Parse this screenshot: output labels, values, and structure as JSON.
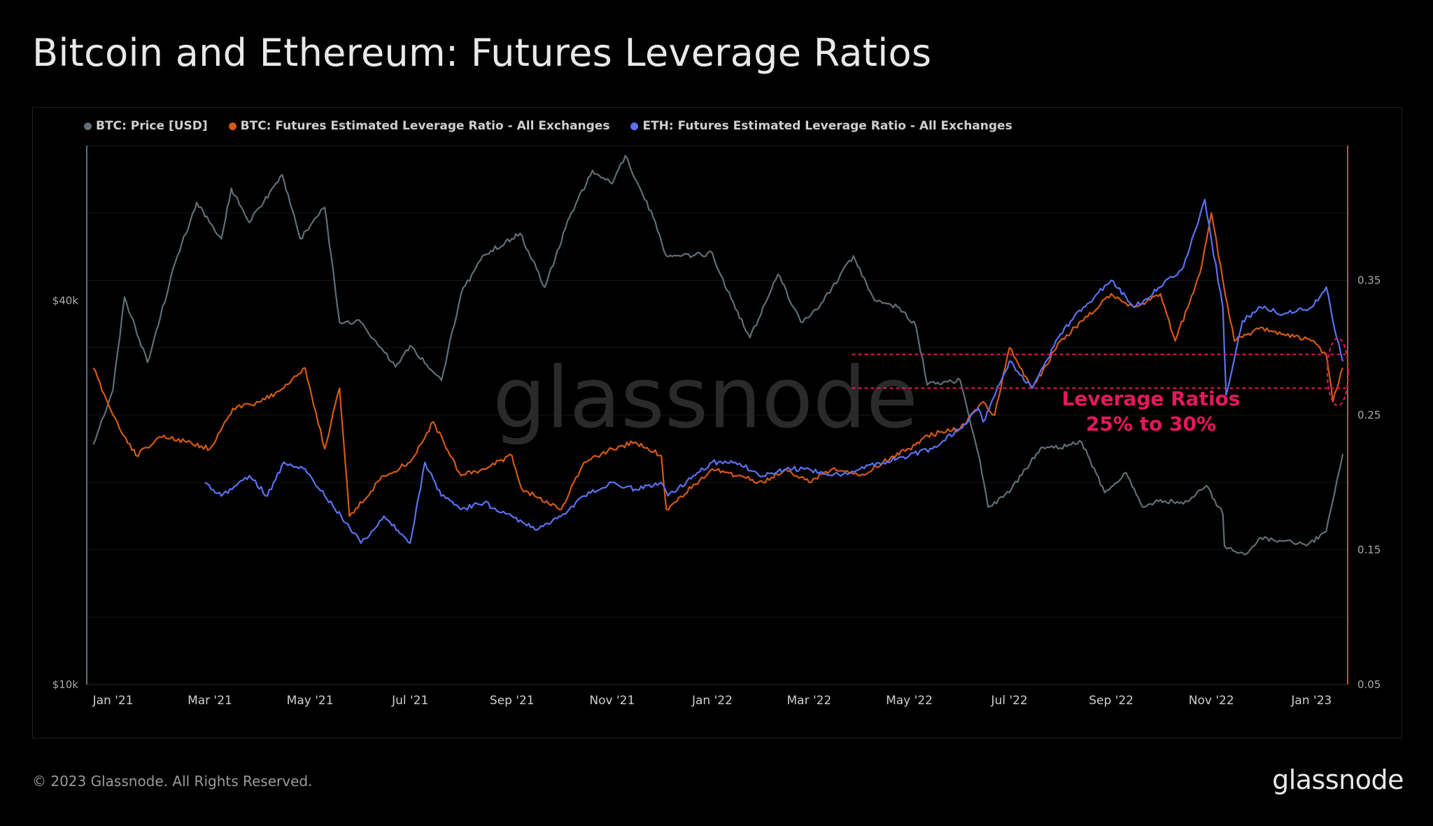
{
  "title": "Bitcoin and Ethereum: Futures Leverage Ratios",
  "footer": {
    "copyright": "© 2023 Glassnode. All Rights Reserved.",
    "logo": "glassnode"
  },
  "watermark": "glassnode",
  "colors": {
    "btc_price": "#5f6f75",
    "btc_lev": "#d45a14",
    "eth_lev": "#5b72f2",
    "highlight": "#e8175d",
    "right_axis": "#c8561a",
    "left_axis": "#5f6f75"
  },
  "chart_data": {
    "type": "line",
    "legend_position": "top-left",
    "grid": true,
    "x_range": [
      "2020-12-16",
      "2023-01-23"
    ],
    "x_ticks": [
      "Jan '21",
      "Mar '21",
      "May '21",
      "Jul '21",
      "Sep '21",
      "Nov '21",
      "Jan '22",
      "Mar '22",
      "May '22",
      "Jul '22",
      "Sep '22",
      "Nov '22",
      "Jan '23"
    ],
    "x_tick_dates": [
      "2021-01-01",
      "2021-03-01",
      "2021-05-01",
      "2021-07-01",
      "2021-09-01",
      "2021-11-01",
      "2022-01-01",
      "2022-03-01",
      "2022-05-01",
      "2022-07-01",
      "2022-09-01",
      "2022-11-01",
      "2023-01-01"
    ],
    "y_left": {
      "scale": "log",
      "range": [
        10000,
        70000
      ],
      "ticks": [
        10000,
        40000
      ],
      "tick_labels": [
        "$10k",
        "$40k"
      ]
    },
    "y_right": {
      "scale": "linear",
      "range": [
        0.05,
        0.45
      ],
      "ticks": [
        0.05,
        0.15,
        0.25,
        0.35
      ],
      "tick_labels": [
        "0.05",
        "0.15",
        "0.25",
        "0.35"
      ]
    },
    "series": [
      {
        "name": "BTC: Price [USD]",
        "axis": "left",
        "dates": [
          "2020-12-20",
          "2021-01-01",
          "2021-01-08",
          "2021-01-22",
          "2021-02-08",
          "2021-02-21",
          "2021-03-08",
          "2021-03-14",
          "2021-03-25",
          "2021-04-14",
          "2021-04-25",
          "2021-05-10",
          "2021-05-19",
          "2021-06-01",
          "2021-06-22",
          "2021-07-01",
          "2021-07-20",
          "2021-08-01",
          "2021-08-14",
          "2021-09-06",
          "2021-09-21",
          "2021-10-06",
          "2021-10-20",
          "2021-11-01",
          "2021-11-09",
          "2021-11-26",
          "2021-12-04",
          "2021-12-20",
          "2022-01-01",
          "2022-01-10",
          "2022-01-24",
          "2022-02-10",
          "2022-02-24",
          "2022-03-07",
          "2022-03-28",
          "2022-04-10",
          "2022-04-25",
          "2022-05-05",
          "2022-05-12",
          "2022-06-01",
          "2022-06-13",
          "2022-06-18",
          "2022-07-01",
          "2022-07-20",
          "2022-08-01",
          "2022-08-14",
          "2022-08-28",
          "2022-09-10",
          "2022-09-20",
          "2022-10-01",
          "2022-10-15",
          "2022-10-29",
          "2022-11-08",
          "2022-11-09",
          "2022-11-21",
          "2022-12-01",
          "2022-12-15",
          "2022-12-30",
          "2023-01-10",
          "2023-01-20"
        ],
        "values": [
          23800,
          29000,
          40500,
          32000,
          46000,
          57000,
          50000,
          60000,
          53000,
          63000,
          50000,
          56000,
          37000,
          37000,
          31500,
          34000,
          30000,
          41000,
          47000,
          51000,
          42000,
          54000,
          64000,
          61000,
          67500,
          54000,
          47000,
          47000,
          47500,
          41500,
          35000,
          44000,
          37000,
          39000,
          47000,
          40000,
          39000,
          36500,
          29500,
          30000,
          22500,
          19000,
          20000,
          23500,
          23500,
          24000,
          20000,
          21500,
          19000,
          19500,
          19200,
          20500,
          18500,
          16500,
          16000,
          17000,
          16800,
          16600,
          17400,
          23000
        ]
      },
      {
        "name": "BTC: Futures Estimated Leverage Ratio - All Exchanges",
        "axis": "right",
        "dates": [
          "2020-12-20",
          "2021-01-01",
          "2021-01-15",
          "2021-02-01",
          "2021-02-15",
          "2021-03-01",
          "2021-03-15",
          "2021-04-01",
          "2021-04-15",
          "2021-04-28",
          "2021-05-10",
          "2021-05-19",
          "2021-05-25",
          "2021-06-15",
          "2021-07-01",
          "2021-07-15",
          "2021-08-01",
          "2021-08-15",
          "2021-09-01",
          "2021-09-07",
          "2021-10-01",
          "2021-10-15",
          "2021-11-01",
          "2021-11-15",
          "2021-12-01",
          "2021-12-04",
          "2022-01-01",
          "2022-01-15",
          "2022-02-01",
          "2022-02-15",
          "2022-03-01",
          "2022-03-15",
          "2022-04-01",
          "2022-04-15",
          "2022-05-01",
          "2022-05-12",
          "2022-06-01",
          "2022-06-15",
          "2022-06-22",
          "2022-07-01",
          "2022-07-15",
          "2022-08-01",
          "2022-08-15",
          "2022-09-01",
          "2022-09-15",
          "2022-10-01",
          "2022-10-10",
          "2022-10-25",
          "2022-11-01",
          "2022-11-08",
          "2022-11-15",
          "2022-12-01",
          "2022-12-15",
          "2023-01-01",
          "2023-01-10",
          "2023-01-14",
          "2023-01-20"
        ],
        "values": [
          0.285,
          0.25,
          0.22,
          0.235,
          0.23,
          0.225,
          0.255,
          0.26,
          0.27,
          0.285,
          0.225,
          0.27,
          0.175,
          0.205,
          0.215,
          0.245,
          0.205,
          0.21,
          0.22,
          0.195,
          0.18,
          0.215,
          0.225,
          0.23,
          0.22,
          0.18,
          0.21,
          0.205,
          0.2,
          0.21,
          0.2,
          0.21,
          0.205,
          0.215,
          0.225,
          0.235,
          0.24,
          0.26,
          0.25,
          0.3,
          0.27,
          0.305,
          0.32,
          0.34,
          0.33,
          0.34,
          0.305,
          0.355,
          0.4,
          0.35,
          0.305,
          0.315,
          0.31,
          0.305,
          0.295,
          0.26,
          0.285
        ]
      },
      {
        "name": "ETH: Futures Estimated Leverage Ratio - All Exchanges",
        "axis": "right",
        "dates": [
          "2021-02-26",
          "2021-03-08",
          "2021-03-25",
          "2021-04-05",
          "2021-04-15",
          "2021-04-28",
          "2021-05-10",
          "2021-05-20",
          "2021-06-01",
          "2021-06-15",
          "2021-07-01",
          "2021-07-10",
          "2021-07-20",
          "2021-08-01",
          "2021-08-15",
          "2021-09-01",
          "2021-09-15",
          "2021-10-01",
          "2021-10-15",
          "2021-11-01",
          "2021-11-15",
          "2021-12-01",
          "2021-12-05",
          "2022-01-01",
          "2022-01-15",
          "2022-02-01",
          "2022-02-15",
          "2022-03-01",
          "2022-03-15",
          "2022-04-01",
          "2022-04-15",
          "2022-05-01",
          "2022-05-15",
          "2022-06-01",
          "2022-06-12",
          "2022-06-15",
          "2022-07-01",
          "2022-07-15",
          "2022-08-01",
          "2022-08-15",
          "2022-09-01",
          "2022-09-15",
          "2022-10-01",
          "2022-10-15",
          "2022-10-28",
          "2022-11-01",
          "2022-11-08",
          "2022-11-10",
          "2022-11-20",
          "2022-12-01",
          "2022-12-15",
          "2023-01-01",
          "2023-01-10",
          "2023-01-14",
          "2023-01-20"
        ],
        "values": [
          0.2,
          0.19,
          0.205,
          0.19,
          0.215,
          0.21,
          0.19,
          0.175,
          0.155,
          0.175,
          0.155,
          0.215,
          0.19,
          0.18,
          0.185,
          0.175,
          0.165,
          0.175,
          0.19,
          0.2,
          0.195,
          0.2,
          0.19,
          0.215,
          0.215,
          0.205,
          0.21,
          0.21,
          0.205,
          0.21,
          0.215,
          0.22,
          0.225,
          0.24,
          0.255,
          0.245,
          0.29,
          0.27,
          0.31,
          0.33,
          0.35,
          0.33,
          0.345,
          0.36,
          0.41,
          0.38,
          0.33,
          0.265,
          0.32,
          0.33,
          0.325,
          0.33,
          0.345,
          0.32,
          0.29
        ]
      }
    ],
    "annotations": [
      {
        "text_lines": [
          "Leverage Ratios",
          "25% to 30%"
        ],
        "ref_lines": [
          0.27,
          0.295
        ],
        "ref_x_start": "2022-03-27",
        "ref_x_end": "2023-01-22"
      }
    ]
  }
}
